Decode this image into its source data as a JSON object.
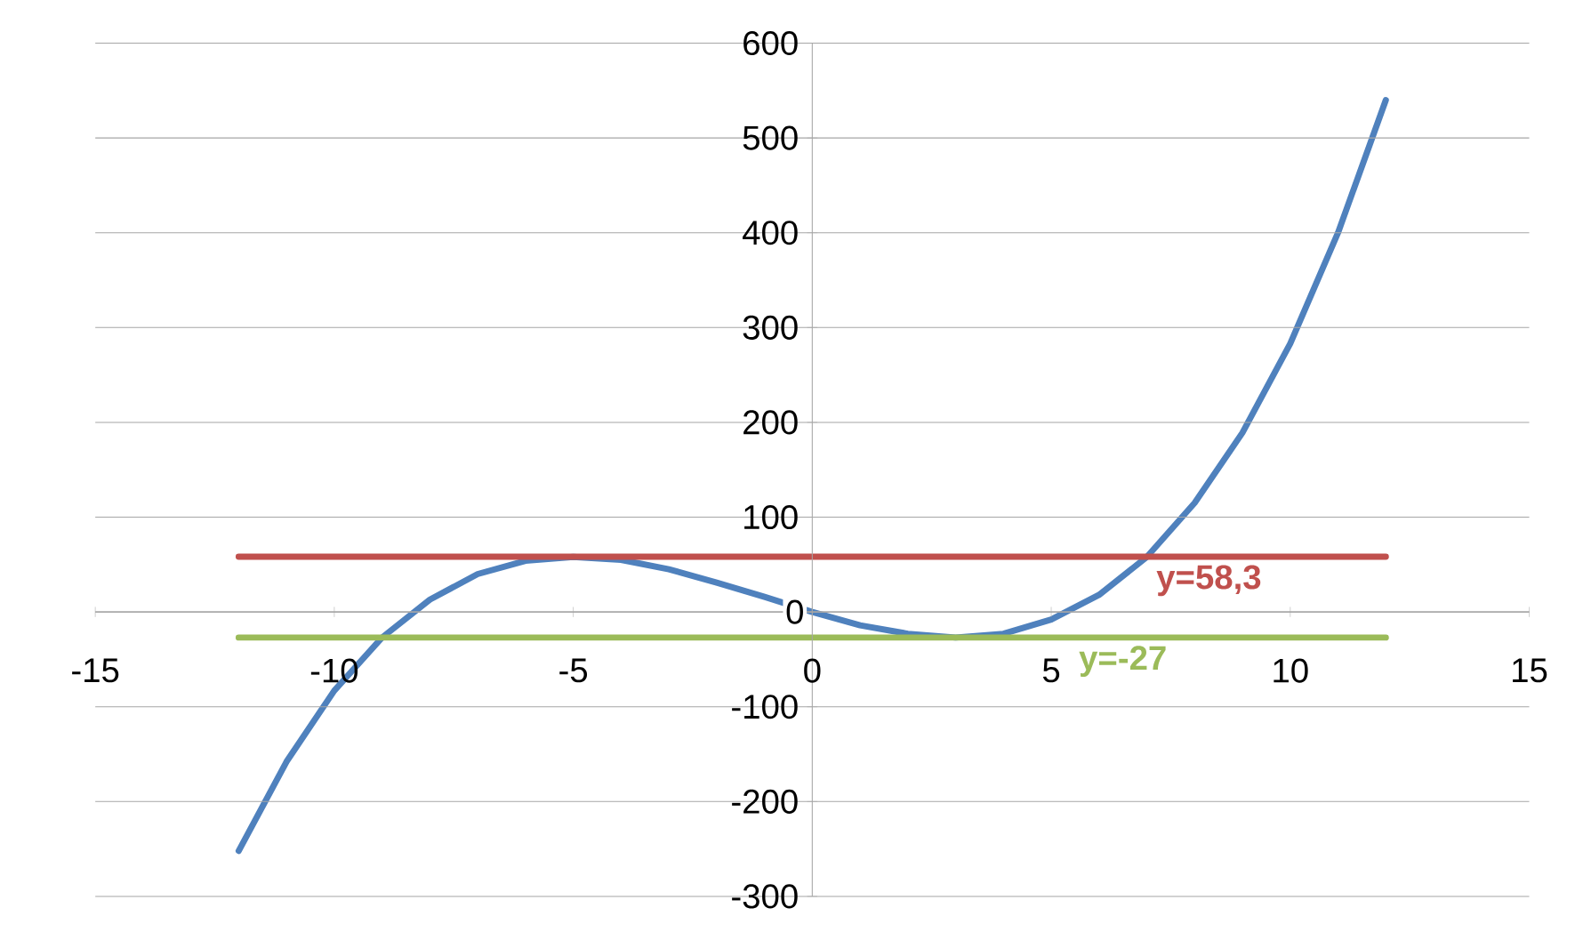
{
  "chart_data": {
    "type": "line",
    "xlim": [
      -15,
      15
    ],
    "ylim": [
      -300,
      600
    ],
    "xticks": [
      -15,
      -10,
      -5,
      0,
      5,
      10,
      15
    ],
    "yticks": [
      -300,
      -200,
      -100,
      0,
      100,
      200,
      300,
      400,
      500,
      600
    ],
    "grid": "y",
    "marker": "none",
    "line_style": "solid",
    "series": [
      {
        "color": "#4f81bd",
        "x": [
          -12,
          -11,
          -10,
          -9,
          -8,
          -7,
          -6,
          -5,
          -4,
          -3,
          -2,
          -1,
          0,
          1,
          2,
          3,
          4,
          5,
          6,
          7,
          8,
          9,
          10,
          11,
          12
        ],
        "values": [
          -252,
          -158,
          -83,
          -27,
          13,
          40,
          54,
          58,
          55,
          45,
          31,
          16,
          0,
          -14,
          -23,
          -27,
          -23,
          -8,
          18,
          58,
          115,
          189,
          283,
          400,
          540
        ]
      },
      {
        "color": "#c0504d",
        "x": [
          -12,
          12
        ],
        "values": [
          58.3,
          58.3
        ]
      },
      {
        "color": "#9bbb59",
        "x": [
          -12,
          12
        ],
        "values": [
          -27,
          -27
        ]
      }
    ],
    "annotations": [
      {
        "text": "y=58,3",
        "x": 8.3,
        "y": 58.3
      },
      {
        "text": "y=-27",
        "x": 6.5,
        "y": -27
      }
    ]
  }
}
